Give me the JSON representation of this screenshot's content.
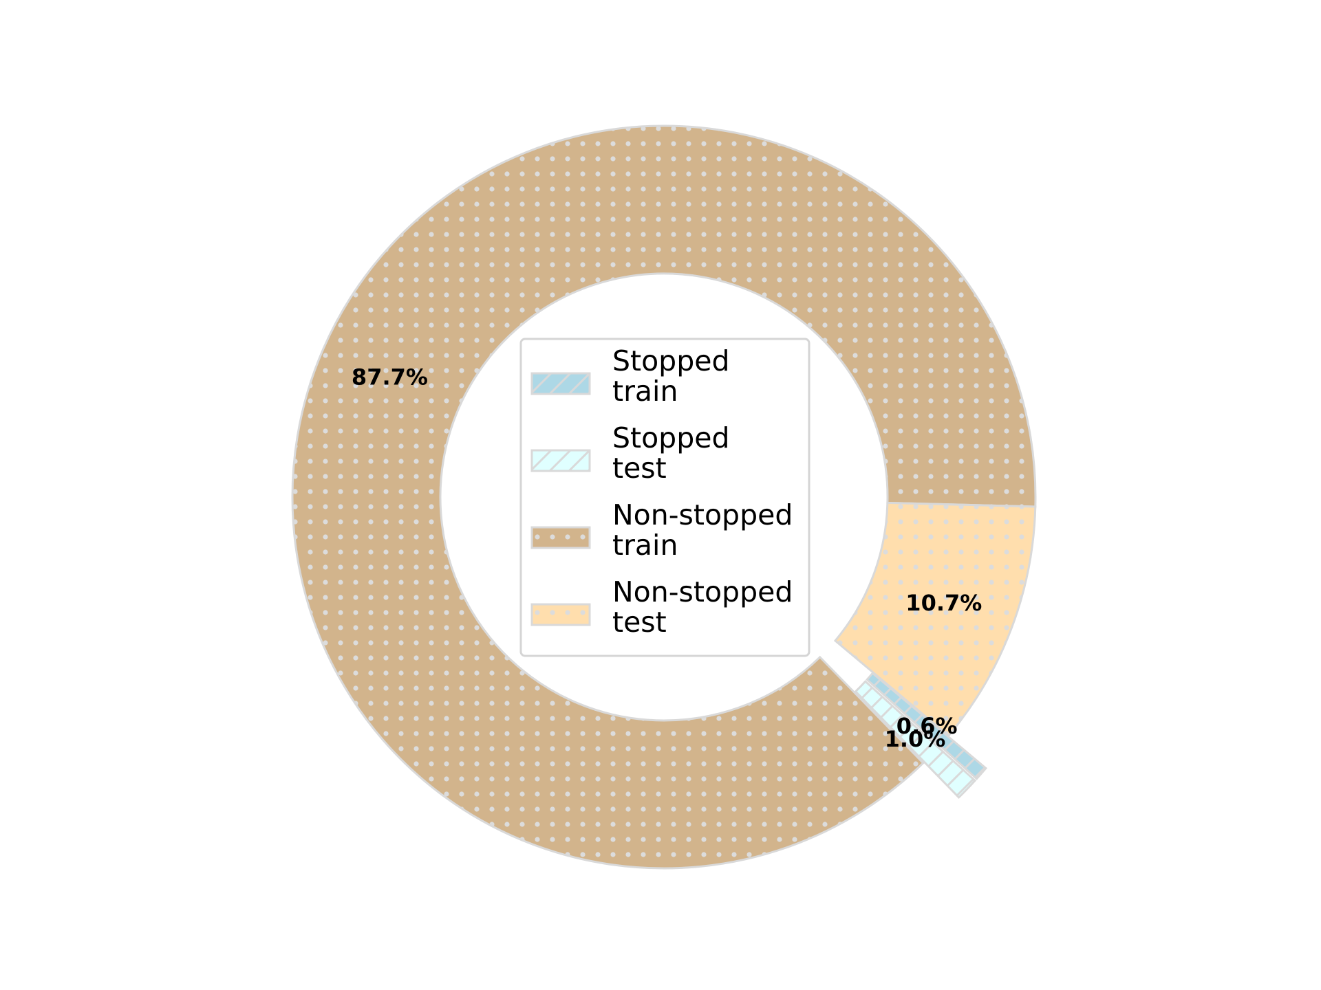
{
  "chart_data": {
    "type": "pie",
    "variant": "donut",
    "title": "",
    "series": [
      {
        "name": "Stopped\ntrain",
        "value": 0.6,
        "label": "0.6%",
        "color": "#add8e6",
        "hatch": "diagonal",
        "exploded": true
      },
      {
        "name": "Stopped\ntest",
        "value": 1.0,
        "label": "1.0%",
        "color": "#e0ffff",
        "hatch": "diagonal",
        "exploded": true
      },
      {
        "name": "Non-stopped\ntrain",
        "value": 87.7,
        "label": "87.7%",
        "color": "#d2b48c",
        "hatch": "dots",
        "exploded": false
      },
      {
        "name": "Non-stopped\ntest",
        "value": 10.7,
        "label": "10.7%",
        "color": "#ffdead",
        "hatch": "dots",
        "exploded": false
      }
    ],
    "start_angle_deg": -40,
    "direction": "clockwise",
    "edge_color": "#d9d9d9",
    "legend": {
      "placement": "center"
    }
  }
}
